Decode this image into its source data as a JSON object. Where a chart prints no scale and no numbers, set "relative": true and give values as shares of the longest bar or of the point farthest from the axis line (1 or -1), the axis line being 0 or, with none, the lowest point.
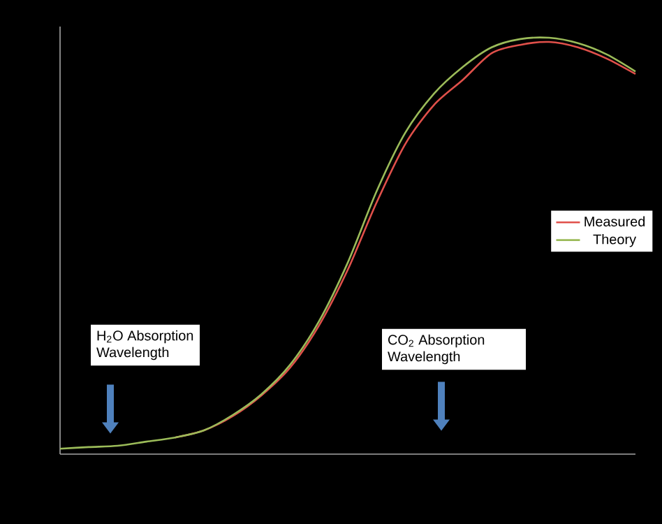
{
  "chart_data": {
    "type": "line",
    "relative": true,
    "categories": [
      null,
      null,
      null,
      null,
      null,
      null,
      null,
      null,
      null,
      null,
      null,
      null,
      null,
      null,
      null,
      null,
      null,
      null,
      null,
      null,
      null
    ],
    "series": [
      {
        "name": "Measured",
        "color": "#e0504a",
        "values": [
          null,
          null,
          null,
          null,
          0.04,
          0.057,
          0.091,
          0.141,
          0.208,
          0.309,
          0.443,
          0.604,
          0.745,
          0.839,
          0.899,
          0.963,
          0.983,
          0.99,
          0.977,
          0.95,
          0.913
        ]
      },
      {
        "name": "Theory",
        "color": "#9bbb59",
        "values": [
          0.013,
          0.017,
          0.02,
          0.03,
          0.04,
          0.057,
          0.094,
          0.144,
          0.215,
          0.319,
          0.46,
          0.631,
          0.772,
          0.866,
          0.93,
          0.977,
          0.997,
          1,
          0.987,
          0.96,
          0.919
        ]
      }
    ],
    "legend": "right",
    "annotations": [
      "H$_{2}$O Absorption Wavelength",
      "CO$_{2}$ Absorption Wavelength"
    ]
  }
}
